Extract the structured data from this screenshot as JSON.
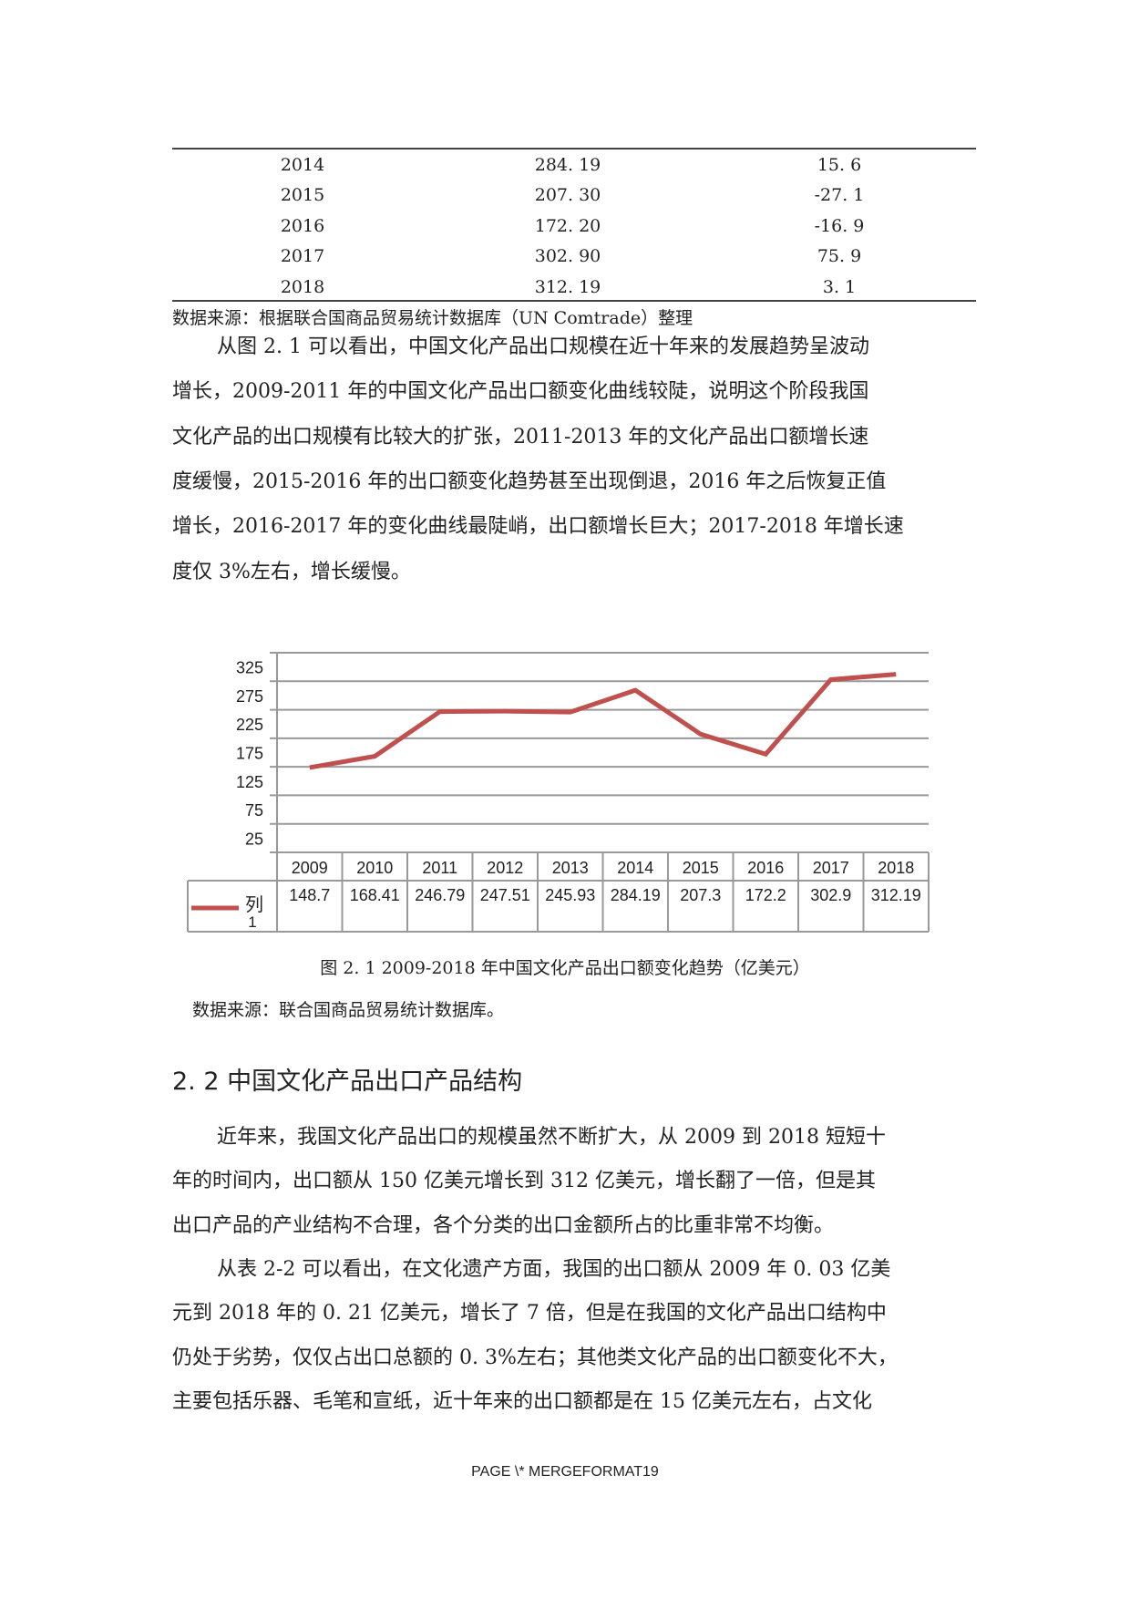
{
  "table": {
    "rows": [
      [
        "2014",
        "284. 19",
        "15. 6"
      ],
      [
        "2015",
        "207. 30",
        "-27. 1"
      ],
      [
        "2016",
        "172. 20",
        "-16. 9"
      ],
      [
        "2017",
        "302. 90",
        "75. 9"
      ],
      [
        "2018",
        "312. 19",
        "3. 1"
      ]
    ],
    "source": "数据来源：根据联合国商品贸易统计数据库（UN Comtrade）整理"
  },
  "paragraph1": [
    "从图 2. 1 可以看出，中国文化产品出口规模在近十年来的发展趋势呈波动",
    "增长，2009-2011 年的中国文化产品出口额变化曲线较陡，说明这个阶段我国",
    "文化产品的出口规模有比较大的扩张，2011-2013 年的文化产品出口额增长速",
    "度缓慢，2015-2016 年的出口额变化趋势甚至出现倒退，2016 年之后恢复正值",
    "增长，2016-2017 年的变化曲线最陡峭，出口额增长巨大；2017-2018 年增长速",
    "度仅 3%左右，增长缓慢。"
  ],
  "chart_data": {
    "type": "line",
    "categories": [
      "2009",
      "2010",
      "2011",
      "2012",
      "2013",
      "2014",
      "2015",
      "2016",
      "2017",
      "2018"
    ],
    "series": [
      {
        "name": "列 1",
        "values": [
          148.7,
          168.41,
          246.79,
          247.51,
          245.93,
          284.19,
          207.3,
          172.2,
          302.9,
          312.19
        ],
        "color": "#c0504d"
      }
    ],
    "value_labels": [
      "148.7",
      "168.41",
      "246.79",
      "247.51",
      "245.93",
      "284.19",
      "207.3",
      "172.2",
      "302.9",
      "312.19"
    ],
    "y_tick_labels": [
      "325",
      "275",
      "225",
      "175",
      "125",
      "75",
      "25"
    ],
    "ylim": [
      0,
      350
    ],
    "grid_step": 50,
    "grid": true,
    "legend": "data-table-left",
    "legend_label_line1": "列",
    "legend_label_line2": "1"
  },
  "figure": {
    "caption": "图 2. 1  2009-2018 年中国文化产品出口额变化趋势（亿美元）",
    "source": "数据来源：联合国商品贸易统计数据库。"
  },
  "section": {
    "heading": "2. 2 中国文化产品出口产品结构"
  },
  "paragraph2": [
    "近年来，我国文化产品出口的规模虽然不断扩大，从 2009 到 2018 短短十",
    "年的时间内，出口额从 150 亿美元增长到 312 亿美元，增长翻了一倍，但是其",
    "出口产品的产业结构不合理，各个分类的出口金额所占的比重非常不均衡。"
  ],
  "paragraph3": [
    "从表 2-2 可以看出，在文化遗产方面，我国的出口额从 2009 年 0. 03 亿美",
    "元到 2018 年的 0. 21 亿美元，增长了 7 倍，但是在我国的文化产品出口结构中",
    "仍处于劣势，仅仅占出口总额的 0. 3%左右；其他类文化产品的出口额变化不大，",
    "主要包括乐器、毛笔和宣纸，近十年来的出口额都是在 15 亿美元左右，占文化"
  ],
  "footer": "PAGE  \\* MERGEFORMAT19"
}
